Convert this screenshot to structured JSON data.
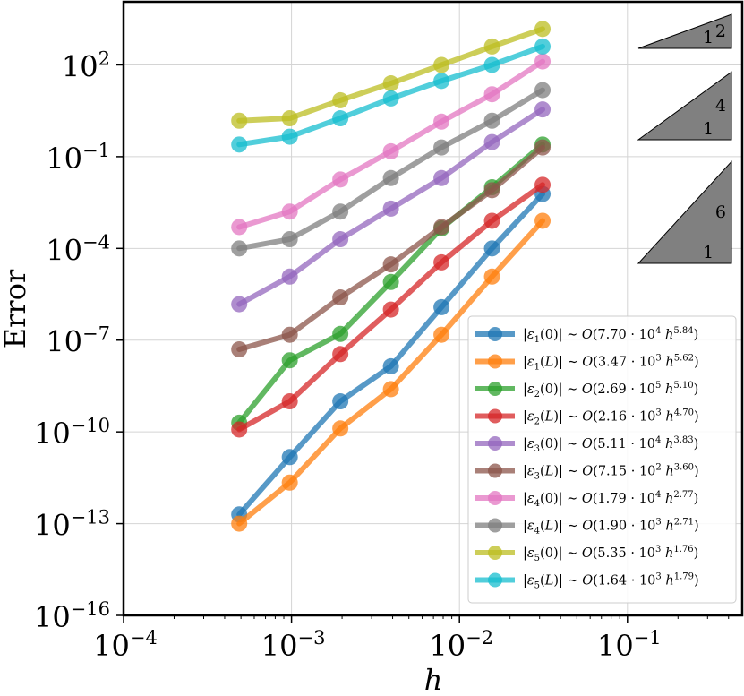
{
  "chart_data": {
    "type": "line",
    "xscale": "log",
    "yscale": "log",
    "xlabel": "h",
    "ylabel": "Error",
    "xlim": [
      0.0001,
      0.5
    ],
    "ylim": [
      1e-16,
      10000
    ],
    "x_ticks": [
      {
        "value": 0.0001,
        "base": "10",
        "exp": "−4"
      },
      {
        "value": 0.001,
        "base": "10",
        "exp": "−3"
      },
      {
        "value": 0.01,
        "base": "10",
        "exp": "−2"
      },
      {
        "value": 0.1,
        "base": "10",
        "exp": "−1"
      }
    ],
    "y_ticks": [
      {
        "value": 1e-16,
        "base": "10",
        "exp": "−16"
      },
      {
        "value": 1e-13,
        "base": "10",
        "exp": "−13"
      },
      {
        "value": 1e-10,
        "base": "10",
        "exp": "−10"
      },
      {
        "value": 1e-07,
        "base": "10",
        "exp": "−7"
      },
      {
        "value": 0.0001,
        "base": "10",
        "exp": "−4"
      },
      {
        "value": 0.1,
        "base": "10",
        "exp": "−1"
      },
      {
        "value": 100,
        "base": "10",
        "exp": "2"
      }
    ],
    "grid": true,
    "legend_position": "bottom-right",
    "x": [
      0.00048828125,
      0.0009765625,
      0.001953125,
      0.00390625,
      0.0078125,
      0.015625,
      0.03125
    ],
    "series": [
      {
        "name": "ε1(0)",
        "color": "#1f77b4",
        "legend": {
          "sub": "1",
          "arg": "0",
          "coef": "7.70",
          "cexp": "4",
          "hexp": "5.84"
        },
        "values": [
          2e-13,
          1.5e-11,
          1e-09,
          1.4e-08,
          1.2e-06,
          0.0001,
          0.006
        ]
      },
      {
        "name": "ε1(L)",
        "color": "#ff7f0e",
        "legend": {
          "sub": "1",
          "arg": "L",
          "coef": "3.47",
          "cexp": "3",
          "hexp": "5.62"
        },
        "values": [
          1e-13,
          2.2e-12,
          1.3e-10,
          2.5e-09,
          1.5e-07,
          1.2e-05,
          0.0008
        ]
      },
      {
        "name": "ε2(0)",
        "color": "#2ca02c",
        "legend": {
          "sub": "2",
          "arg": "0",
          "coef": "2.69",
          "cexp": "5",
          "hexp": "5.10"
        },
        "values": [
          2e-10,
          2.2e-08,
          1.6e-07,
          8e-06,
          0.00045,
          0.01,
          0.25
        ]
      },
      {
        "name": "ε2(L)",
        "color": "#d62728",
        "legend": {
          "sub": "2",
          "arg": "L",
          "coef": "2.16",
          "cexp": "3",
          "hexp": "4.70"
        },
        "values": [
          1.2e-10,
          1e-09,
          3.5e-08,
          1e-06,
          3.5e-05,
          0.0008,
          0.012
        ]
      },
      {
        "name": "ε3(0)",
        "color": "#9467bd",
        "legend": {
          "sub": "3",
          "arg": "0",
          "coef": "5.11",
          "cexp": "4",
          "hexp": "3.83"
        },
        "values": [
          1.5e-06,
          1.2e-05,
          0.0002,
          0.002,
          0.02,
          0.3,
          3.5
        ]
      },
      {
        "name": "ε3(L)",
        "color": "#8c564b",
        "legend": {
          "sub": "3",
          "arg": "L",
          "coef": "7.15",
          "cexp": "2",
          "hexp": "3.60"
        },
        "values": [
          5e-08,
          1.5e-07,
          2.5e-06,
          3e-05,
          0.0005,
          0.008,
          0.2
        ]
      },
      {
        "name": "ε4(0)",
        "color": "#e377c2",
        "legend": {
          "sub": "4",
          "arg": "0",
          "coef": "1.79",
          "cexp": "4",
          "hexp": "2.77"
        },
        "values": [
          0.0005,
          0.0016,
          0.018,
          0.15,
          1.4,
          11,
          130
        ]
      },
      {
        "name": "ε4(L)",
        "color": "#7f7f7f",
        "legend": {
          "sub": "4",
          "arg": "L",
          "coef": "1.90",
          "cexp": "3",
          "hexp": "2.71"
        },
        "values": [
          0.0001,
          0.0002,
          0.0016,
          0.02,
          0.2,
          1.5,
          15
        ]
      },
      {
        "name": "ε5(0)",
        "color": "#bcbd22",
        "legend": {
          "sub": "5",
          "arg": "0",
          "coef": "5.35",
          "cexp": "3",
          "hexp": "1.76"
        },
        "values": [
          1.5,
          1.8,
          7.0,
          25,
          100,
          400,
          1500
        ]
      },
      {
        "name": "ε5(L)",
        "color": "#17becf",
        "legend": {
          "sub": "5",
          "arg": "L",
          "coef": "1.64",
          "cexp": "3",
          "hexp": "1.79"
        },
        "values": [
          0.25,
          0.45,
          1.8,
          8.0,
          30,
          100,
          400
        ]
      }
    ],
    "slope_triangles": [
      {
        "slope": 2,
        "run_label": "1",
        "rise_label": "2"
      },
      {
        "slope": 4,
        "run_label": "1",
        "rise_label": "4"
      },
      {
        "slope": 6,
        "run_label": "1",
        "rise_label": "6"
      }
    ]
  }
}
